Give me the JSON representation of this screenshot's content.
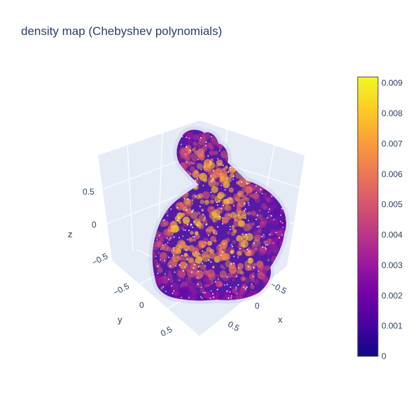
{
  "chart_data": {
    "type": "scatter3d",
    "title": "density map (Chebyshev polynomials)",
    "axes": {
      "x": {
        "label": "x",
        "ticks": [
          "−0.5",
          "0",
          "0.5"
        ],
        "range": [
          -0.9,
          0.9
        ]
      },
      "y": {
        "label": "y",
        "ticks": [
          "−0.5",
          "0",
          "0.5"
        ],
        "range": [
          -0.9,
          0.9
        ]
      },
      "z": {
        "label": "z",
        "ticks": [
          "−0.5",
          "0",
          "0.5"
        ],
        "range": [
          -0.9,
          0.9
        ]
      }
    },
    "colorbar": {
      "colorscale": "plasma",
      "range": [
        0,
        0.0092
      ],
      "ticks": [
        "0",
        "0.001",
        "0.002",
        "0.003",
        "0.004",
        "0.005",
        "0.006",
        "0.007",
        "0.008",
        "0.009"
      ]
    },
    "surface": "volumetric density of bunny shape",
    "points_color": "#ffffff"
  },
  "colors": {
    "scene_background": "#e5ecf6",
    "grid": "#ffffff",
    "text": "#2a3f5f",
    "plasma": [
      "#0d0887",
      "#46039f",
      "#7201a8",
      "#9c179e",
      "#bd3786",
      "#d8576b",
      "#ed7953",
      "#fb9f3a",
      "#fdca26",
      "#f0f921"
    ]
  }
}
